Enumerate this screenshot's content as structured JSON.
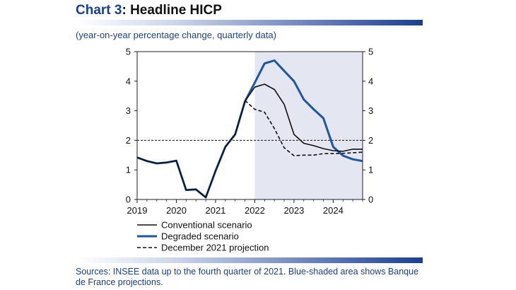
{
  "header": {
    "title_prefix": "Chart 3",
    "title_suffix": ": Headline HICP",
    "subtitle": "(year-on-year percentage change, quarterly data)"
  },
  "footer": {
    "source": "Sources: INSEE data up to the fourth quarter of 2021. Blue-shaded area shows Banque de France projections."
  },
  "colors": {
    "brand": "#1b3f8f",
    "shade": "#e4e6f2",
    "conventional": "#101010",
    "degraded": "#1f55a5",
    "december": "#101010"
  },
  "chart_data": {
    "type": "line",
    "title": "Headline HICP",
    "subtitle": "(year-on-year percentage change, quarterly data)",
    "x_unit": "year",
    "xlim": [
      2019,
      2024.75
    ],
    "ylim": [
      0,
      5
    ],
    "x_ticks": [
      "2019",
      "2020",
      "2021",
      "2022",
      "2023",
      "2024"
    ],
    "y_ticks_left": [
      "0",
      "1",
      "2",
      "3",
      "4",
      "5"
    ],
    "y_ticks_right": [
      "0",
      "1",
      "2",
      "3",
      "4",
      "5"
    ],
    "reference_line": {
      "y": 2,
      "style": "dashed"
    },
    "shaded_region": {
      "x_start": 2022,
      "x_end": 2024.75,
      "label": "Banque de France projections"
    },
    "legend_position": "bottom-left",
    "series": [
      {
        "name": "Conventional scenario",
        "style": "solid",
        "color": "#101010",
        "x": [
          2019,
          2019.25,
          2019.5,
          2019.75,
          2020,
          2020.25,
          2020.5,
          2020.75,
          2021,
          2021.25,
          2021.5,
          2021.75,
          2022,
          2022.25,
          2022.5,
          2022.75,
          2023,
          2023.25,
          2023.5,
          2023.75,
          2024,
          2024.25,
          2024.5,
          2024.75
        ],
        "y": [
          1.42,
          1.3,
          1.22,
          1.25,
          1.31,
          0.32,
          0.34,
          0.07,
          0.97,
          1.78,
          2.2,
          3.32,
          3.8,
          3.9,
          3.72,
          3.22,
          2.2,
          1.9,
          1.82,
          1.72,
          1.65,
          1.63,
          1.7,
          1.7
        ]
      },
      {
        "name": "Degraded scenario",
        "style": "solid",
        "color": "#1f55a5",
        "x": [
          2019,
          2019.25,
          2019.5,
          2019.75,
          2020,
          2020.25,
          2020.5,
          2020.75,
          2021,
          2021.25,
          2021.5,
          2021.75,
          2022,
          2022.25,
          2022.5,
          2022.75,
          2023,
          2023.25,
          2023.5,
          2023.75,
          2024,
          2024.25,
          2024.5,
          2024.75
        ],
        "y": [
          1.42,
          1.3,
          1.22,
          1.25,
          1.31,
          0.32,
          0.34,
          0.07,
          0.97,
          1.78,
          2.2,
          3.32,
          3.95,
          4.6,
          4.7,
          4.35,
          4.0,
          3.38,
          3.05,
          2.75,
          1.78,
          1.48,
          1.36,
          1.3
        ]
      },
      {
        "name": "December 2021 projection",
        "style": "dashed",
        "color": "#101010",
        "x": [
          2021.75,
          2022,
          2022.25,
          2022.5,
          2022.75,
          2023,
          2023.25,
          2023.5,
          2023.75,
          2024,
          2024.25,
          2024.5,
          2024.75
        ],
        "y": [
          3.35,
          3.05,
          2.95,
          2.4,
          1.75,
          1.48,
          1.5,
          1.5,
          1.55,
          1.55,
          1.56,
          1.58,
          1.6
        ]
      }
    ]
  }
}
